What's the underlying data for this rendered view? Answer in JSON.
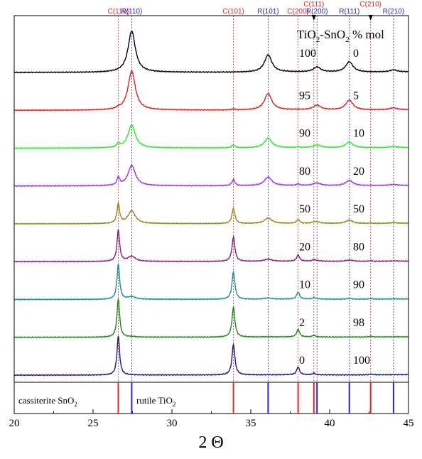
{
  "chart_data": {
    "type": "line",
    "xlabel": "2 Θ",
    "xlim": [
      20,
      45
    ],
    "xticks": [
      "20",
      "25",
      "30",
      "35",
      "40",
      "45"
    ],
    "legend_header": {
      "prefix": "TiO",
      "sub1": "2",
      "mid": "-SnO",
      "sub2": "2",
      "suffix": " % mol"
    },
    "cassiterite_peaks": [
      {
        "label": "C(110)",
        "x": 26.6
      },
      {
        "label": "C(101)",
        "x": 33.9
      },
      {
        "label": "C(200)",
        "x": 38.0
      },
      {
        "label": "C(111)",
        "x": 39.0
      },
      {
        "label": "C(210)",
        "x": 42.6
      }
    ],
    "rutile_peaks": [
      {
        "label": "R(110)",
        "x": 27.45
      },
      {
        "label": "R(101)",
        "x": 36.1
      },
      {
        "label": "R(200)",
        "x": 39.2
      },
      {
        "label": "R(111)",
        "x": 41.25
      },
      {
        "label": "R(210)",
        "x": 44.05
      }
    ],
    "arrow_markers": [
      39.0,
      42.6
    ],
    "reference_labels": {
      "cassiterite": {
        "prefix": "cassiterite SnO",
        "sub": "2"
      },
      "rutile": {
        "prefix": "rutile TiO",
        "sub": "2"
      }
    },
    "peak_colors": {
      "cassiterite": "#e8262a",
      "rutile": "#2424d8"
    },
    "series": [
      {
        "tio2": "100",
        "sno2": "0",
        "color": "#000000",
        "rutile_fraction": 1.0
      },
      {
        "tio2": "95",
        "sno2": "5",
        "color": "#e02020",
        "rutile_fraction": 0.95
      },
      {
        "tio2": "90",
        "sno2": "10",
        "color": "#22ee22",
        "rutile_fraction": 0.9
      },
      {
        "tio2": "80",
        "sno2": "20",
        "color": "#9933ee",
        "rutile_fraction": 0.8
      },
      {
        "tio2": "50",
        "sno2": "50",
        "color": "#8f8a18",
        "rutile_fraction": 0.5
      },
      {
        "tio2": "20",
        "sno2": "80",
        "color": "#8a1a7a",
        "rutile_fraction": 0.2
      },
      {
        "tio2": "10",
        "sno2": "90",
        "color": "#1a8f8f",
        "rutile_fraction": 0.1
      },
      {
        "tio2": "2",
        "sno2": "98",
        "color": "#1a8a1a",
        "rutile_fraction": 0.02
      },
      {
        "tio2": "0",
        "sno2": "100",
        "color": "#1a1a80",
        "rutile_fraction": 0.0
      }
    ]
  }
}
